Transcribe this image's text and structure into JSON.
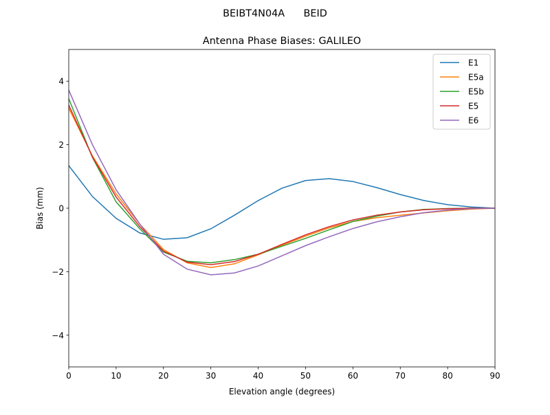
{
  "chart_data": {
    "type": "line",
    "suptitle": "BEIBT4N04A      BEID",
    "title": "Antenna Phase Biases: GALILEO",
    "xlabel": "Elevation angle (degrees)",
    "ylabel": "Bias (mm)",
    "xlim": [
      0,
      90
    ],
    "ylim": [
      -5,
      5
    ],
    "xticks": [
      0,
      10,
      20,
      30,
      40,
      50,
      60,
      70,
      80,
      90
    ],
    "yticks": [
      -4,
      -2,
      0,
      2,
      4
    ],
    "ytick_labels": [
      "−4",
      "−2",
      "0",
      "2",
      "4"
    ],
    "grid": false,
    "legend_position": "top-right",
    "x": [
      0,
      5,
      10,
      15,
      20,
      25,
      30,
      35,
      40,
      45,
      50,
      55,
      60,
      65,
      70,
      75,
      80,
      85,
      90
    ],
    "series": [
      {
        "name": "E1",
        "color": "#1f77b4",
        "values": [
          1.34,
          0.37,
          -0.32,
          -0.78,
          -0.98,
          -0.93,
          -0.65,
          -0.22,
          0.24,
          0.63,
          0.87,
          0.93,
          0.84,
          0.65,
          0.43,
          0.24,
          0.11,
          0.04,
          0
        ]
      },
      {
        "name": "E5a",
        "color": "#ff7f0e",
        "values": [
          3.15,
          1.65,
          0.45,
          -0.5,
          -1.3,
          -1.72,
          -1.87,
          -1.75,
          -1.47,
          -1.17,
          -0.88,
          -0.62,
          -0.42,
          -0.3,
          -0.22,
          -0.15,
          -0.08,
          -0.03,
          0
        ]
      },
      {
        "name": "E5b",
        "color": "#2ca02c",
        "values": [
          3.45,
          1.6,
          0.2,
          -0.65,
          -1.38,
          -1.67,
          -1.72,
          -1.62,
          -1.45,
          -1.2,
          -0.95,
          -0.68,
          -0.42,
          -0.25,
          -0.12,
          -0.04,
          -0.01,
          0,
          0
        ]
      },
      {
        "name": "E5",
        "color": "#d62728",
        "values": [
          3.25,
          1.62,
          0.35,
          -0.58,
          -1.35,
          -1.7,
          -1.78,
          -1.68,
          -1.45,
          -1.14,
          -0.84,
          -0.58,
          -0.37,
          -0.22,
          -0.12,
          -0.05,
          -0.02,
          0,
          0
        ]
      },
      {
        "name": "E6",
        "color": "#9467bd",
        "values": [
          3.72,
          2.0,
          0.58,
          -0.5,
          -1.45,
          -1.92,
          -2.1,
          -2.04,
          -1.82,
          -1.5,
          -1.18,
          -0.9,
          -0.64,
          -0.43,
          -0.27,
          -0.14,
          -0.06,
          -0.01,
          0
        ]
      }
    ]
  }
}
